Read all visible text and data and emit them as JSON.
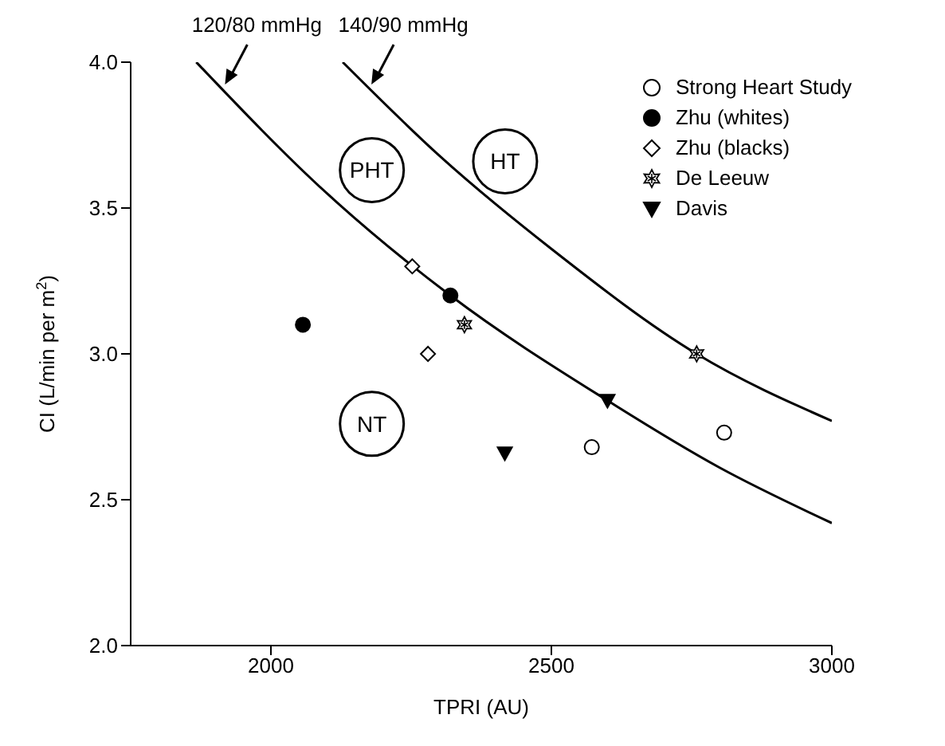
{
  "chart_data": {
    "type": "scatter",
    "xlabel": "TPRI (AU)",
    "ylabel": "CI (L/min per m$^{2}$)",
    "xlim": [
      1750,
      3000
    ],
    "xticks": [
      2000,
      2500,
      3000
    ],
    "ylim": [
      2,
      4
    ],
    "yticks": [
      {
        "value": 2,
        "label": "2.0"
      },
      {
        "value": 2.5,
        "label": "2.5"
      },
      {
        "value": 3,
        "label": "3.0"
      },
      {
        "value": 3.5,
        "label": "3.5"
      },
      {
        "value": 4,
        "label": "4.0"
      }
    ],
    "grid": false,
    "legend": "top right",
    "series": [
      {
        "name": "120/80 mmHg",
        "type": "line",
        "color": "#000000",
        "marker": "none",
        "line_style": "solid",
        "x": [
          1867,
          2100,
          2320,
          2600,
          2800,
          3000
        ],
        "values": [
          4.0,
          3.55,
          3.2,
          2.84,
          2.61,
          2.42
        ]
      },
      {
        "name": "140/90 mmHg",
        "type": "line",
        "color": "#000000",
        "marker": "none",
        "line_style": "solid",
        "x": [
          2128,
          2300,
          2500,
          2759,
          3000
        ],
        "values": [
          4.0,
          3.68,
          3.36,
          3.0,
          2.77
        ]
      },
      {
        "name": "Strong Heart Study",
        "color": "#ffffff",
        "marker": "circle",
        "x": [
          2572,
          2808
        ],
        "values": [
          2.68,
          2.73
        ]
      },
      {
        "name": "Zhu (whites)",
        "color": "#000000",
        "marker": "circle",
        "x": [
          2057,
          2320
        ],
        "values": [
          3.1,
          3.2
        ]
      },
      {
        "name": "Zhu (blacks)",
        "color": "#ffffff",
        "marker": "diamond",
        "x": [
          2252,
          2280
        ],
        "values": [
          3.3,
          3.0
        ]
      },
      {
        "name": "De Leeuw",
        "color": "#ffffff",
        "marker": "cross",
        "x": [
          2345,
          2759
        ],
        "values": [
          3.1,
          3.0
        ]
      },
      {
        "name": "Davis",
        "color": "#000000",
        "marker": "triangle",
        "x": [
          2417,
          2600
        ],
        "values": [
          2.66,
          2.84
        ]
      }
    ],
    "annotations": [
      "PHT",
      "HT",
      "NT"
    ]
  }
}
